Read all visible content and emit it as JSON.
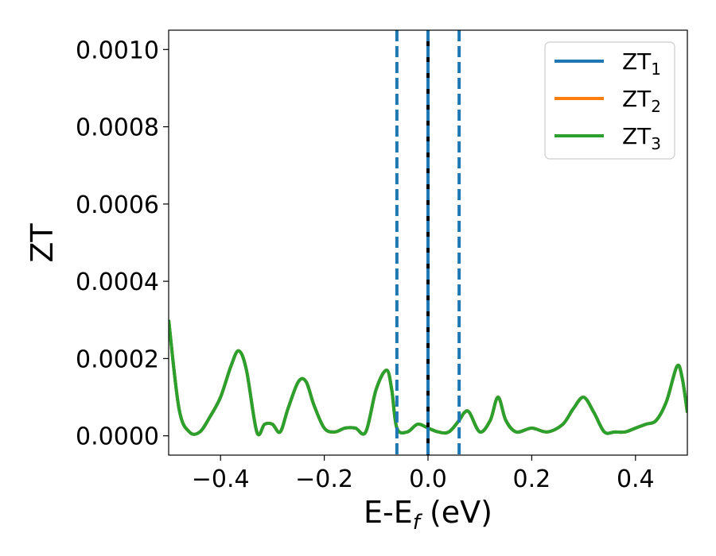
{
  "chart_data": {
    "type": "line",
    "xlabel": {
      "main": "E-E",
      "sub": "f",
      "tail": " (eV)"
    },
    "ylabel": "ZT",
    "xlim": [
      -0.5,
      0.5
    ],
    "ylim": [
      -5e-05,
      0.00105
    ],
    "x_ticks": [
      -0.4,
      -0.2,
      0.0,
      0.2,
      0.4
    ],
    "x_tick_labels": [
      "−0.4",
      "−0.2",
      "0.0",
      "0.2",
      "0.4"
    ],
    "y_ticks": [
      0.0,
      0.0002,
      0.0004,
      0.0006,
      0.0008,
      0.001
    ],
    "y_tick_labels": [
      "0.0000",
      "0.0002",
      "0.0004",
      "0.0006",
      "0.0008",
      "0.0010"
    ],
    "grid": false,
    "legend_position": "top-right",
    "vertical_lines": [
      {
        "x": -0.06,
        "style": "dashed",
        "color": "#1f77b4"
      },
      {
        "x": 0.0,
        "style": "solid",
        "color": "#000000"
      },
      {
        "x": 0.0,
        "style": "dashed",
        "color": "#1f77b4"
      },
      {
        "x": 0.06,
        "style": "dashed",
        "color": "#1f77b4"
      }
    ],
    "series": [
      {
        "name": "ZT",
        "sub": "1",
        "color": "#1f77b4"
      },
      {
        "name": "ZT",
        "sub": "2",
        "color": "#ff7f0e"
      },
      {
        "name": "ZT",
        "sub": "3",
        "color": "#2ca02c"
      }
    ],
    "x": [
      -0.5,
      -0.48,
      -0.46,
      -0.44,
      -0.42,
      -0.4,
      -0.38,
      -0.365,
      -0.35,
      -0.33,
      -0.315,
      -0.3,
      -0.285,
      -0.27,
      -0.25,
      -0.235,
      -0.22,
      -0.2,
      -0.18,
      -0.16,
      -0.14,
      -0.12,
      -0.1,
      -0.08,
      -0.07,
      -0.06,
      -0.04,
      -0.02,
      0.0,
      0.02,
      0.04,
      0.06,
      0.07,
      0.08,
      0.1,
      0.12,
      0.135,
      0.15,
      0.17,
      0.2,
      0.23,
      0.26,
      0.28,
      0.3,
      0.32,
      0.34,
      0.36,
      0.38,
      0.4,
      0.42,
      0.44,
      0.46,
      0.48,
      0.49,
      0.5
    ],
    "y": [
      0.0003,
      7e-05,
      1e-05,
      1e-05,
      5e-05,
      0.0001,
      0.00018,
      0.00022,
      0.00017,
      1e-05,
      3e-05,
      3e-05,
      1e-05,
      7e-05,
      0.00014,
      0.00014,
      8e-05,
      2e-05,
      1e-05,
      2e-05,
      2e-05,
      1e-05,
      0.00012,
      0.00017,
      0.00012,
      2e-05,
      1e-05,
      3e-05,
      2e-05,
      1e-05,
      1e-05,
      4e-05,
      6e-05,
      6e-05,
      1e-05,
      4e-05,
      0.0001,
      4e-05,
      1e-05,
      2e-05,
      1e-05,
      3e-05,
      7e-05,
      0.0001,
      6e-05,
      1e-05,
      1e-05,
      1e-05,
      2e-05,
      3e-05,
      4e-05,
      9e-05,
      0.00018,
      0.00015,
      6e-05
    ]
  }
}
